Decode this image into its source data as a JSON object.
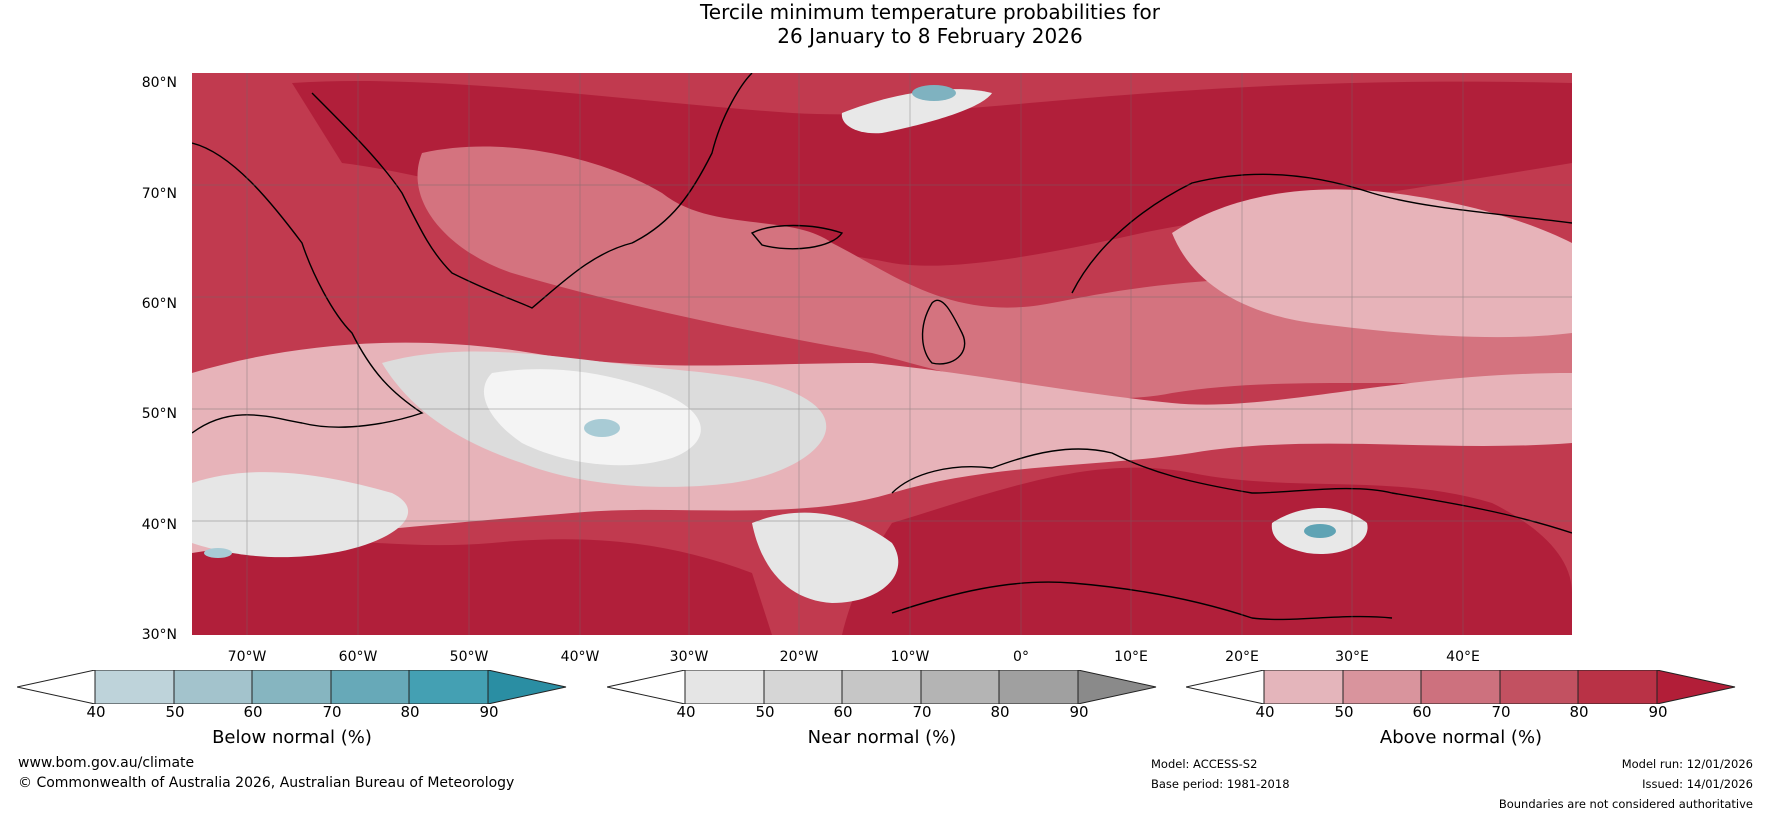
{
  "title": {
    "line1": "Tercile minimum temperature probabilities for",
    "line2": "26 January to 8 February 2026"
  },
  "map": {
    "latitude_labels": [
      "80°N",
      "70°N",
      "60°N",
      "50°N",
      "40°N",
      "30°N"
    ],
    "longitude_labels": [
      "70°W",
      "60°W",
      "50°W",
      "40°W",
      "30°W",
      "20°W",
      "10°W",
      "0°",
      "10°E",
      "20°E",
      "30°E",
      "40°E"
    ],
    "region": "North Atlantic and Europe",
    "colors": {
      "above_dark": "#b11f3a",
      "above_mid": "#c13a4f",
      "above_light": "#d4737f",
      "above_pale": "#e7b3b9",
      "near": "#dcdcdc",
      "below": "#7fb2c0",
      "coastline": "#000000",
      "border": "#8a8a8a"
    }
  },
  "colorbars": {
    "below": {
      "label": "Below normal (%)",
      "ticks": [
        "40",
        "50",
        "60",
        "70",
        "80",
        "90"
      ],
      "colors": [
        "#bed3da",
        "#a3c3cc",
        "#86b5c0",
        "#67a9b8",
        "#44a0b3",
        "#2a8ea3"
      ]
    },
    "near": {
      "label": "Near normal (%)",
      "ticks": [
        "40",
        "50",
        "60",
        "70",
        "80",
        "90"
      ],
      "colors": [
        "#e5e5e5",
        "#d6d6d6",
        "#c6c6c6",
        "#b4b4b4",
        "#a0a0a0",
        "#8a8a8a"
      ]
    },
    "above": {
      "label": "Above normal (%)",
      "ticks": [
        "40",
        "50",
        "60",
        "70",
        "80",
        "90"
      ],
      "colors": [
        "#e4b5bb",
        "#d9949d",
        "#cd717e",
        "#c25161",
        "#b93246",
        "#b21e38"
      ]
    }
  },
  "footer": {
    "website": "www.bom.gov.au/climate",
    "copyright": "© Commonwealth of Australia 2026, Australian Bureau of Meteorology",
    "model": "Model: ACCESS-S2",
    "base_period": "Base period: 1981-2018",
    "model_run": "Model run: 12/01/2026",
    "issued": "Issued: 14/01/2026",
    "disclaimer": "Boundaries are not considered authoritative"
  }
}
